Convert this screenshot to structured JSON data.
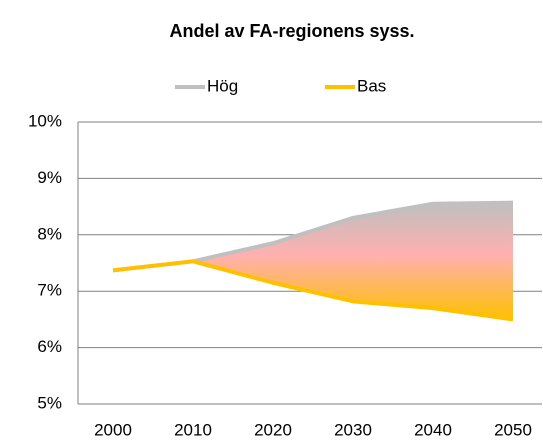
{
  "chart_data": {
    "type": "line",
    "title": "Andel av FA-regionens syss.",
    "categories": [
      "2000",
      "2010",
      "2020",
      "2030",
      "2040",
      "2050"
    ],
    "series": [
      {
        "name": "Hög",
        "color": "#c0c0c0",
        "values": [
          7.37,
          7.53,
          7.85,
          8.3,
          8.55,
          8.57
        ]
      },
      {
        "name": "Bas",
        "color": "#ffc000",
        "values": [
          7.37,
          7.53,
          7.15,
          6.82,
          6.7,
          6.5
        ]
      }
    ],
    "ylim": [
      5,
      10
    ],
    "yticks": [
      {
        "value": 5,
        "label": "5%"
      },
      {
        "value": 6,
        "label": "6%"
      },
      {
        "value": 7,
        "label": "7%"
      },
      {
        "value": 8,
        "label": "8%"
      },
      {
        "value": 9,
        "label": "9%"
      },
      {
        "value": 10,
        "label": "10%"
      }
    ],
    "grid": true,
    "legend": "top"
  }
}
